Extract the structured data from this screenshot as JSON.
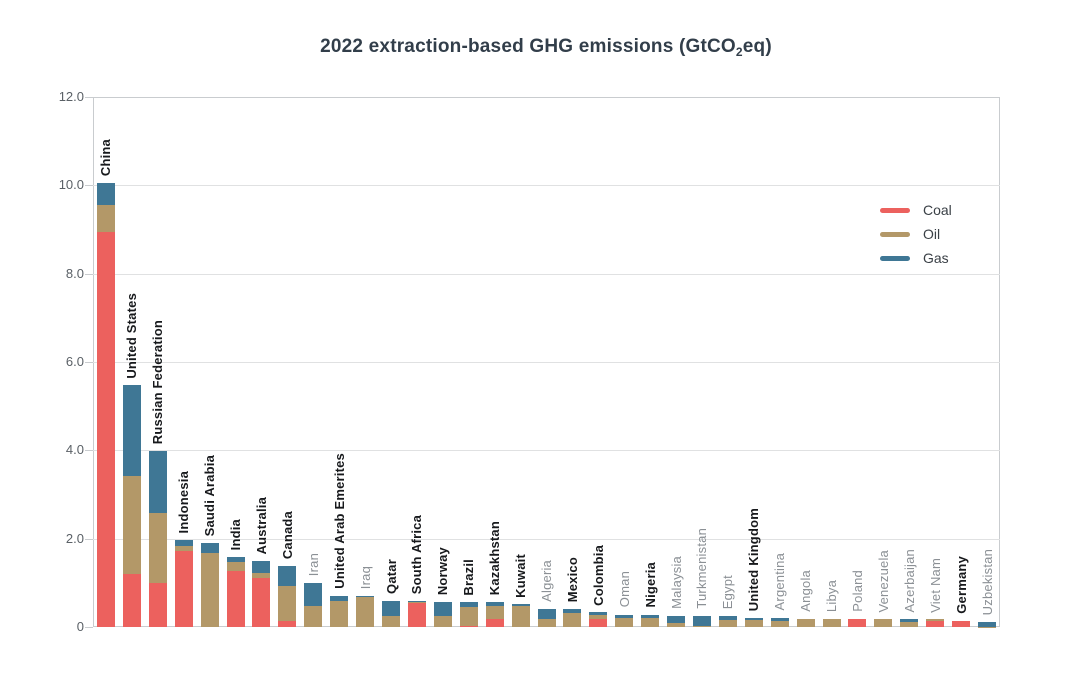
{
  "title": {
    "pre": "2022 extraction-based GHG emissions (GtCO",
    "sub": "2",
    "post": "eq)"
  },
  "colors": {
    "coal": "#EC615E",
    "oil": "#B39868",
    "gas": "#3F7795",
    "title_text": "#323E4A",
    "grid": "#E0E1E2",
    "border": "#C9CCCF",
    "tick_label": "#5A6066",
    "label_bold": "#17191C",
    "label_gray": "#8B9095",
    "background": "#FFFFFF"
  },
  "legend": [
    {
      "label": "Coal",
      "series": "coal",
      "color": "#EC615E"
    },
    {
      "label": "Oil",
      "series": "oil",
      "color": "#B39868"
    },
    {
      "label": "Gas",
      "series": "gas",
      "color": "#3F7795"
    }
  ],
  "chart_data": {
    "type": "bar",
    "stacked": true,
    "title": "2022 extraction-based GHG emissions (GtCO₂eq)",
    "xlabel": "",
    "ylabel": "",
    "ylim": [
      0,
      12
    ],
    "grid": true,
    "legend_position": "upper right",
    "series_order": [
      "coal",
      "oil",
      "gas"
    ],
    "yticks": [
      {
        "v": 0,
        "label": "0"
      },
      {
        "v": 2,
        "label": "2.0"
      },
      {
        "v": 4,
        "label": "4.0"
      },
      {
        "v": 6,
        "label": "6.0"
      },
      {
        "v": 8,
        "label": "8.0"
      },
      {
        "v": 10,
        "label": "10.0"
      },
      {
        "v": 12,
        "label": "12.0"
      }
    ],
    "bars": [
      {
        "country": "China",
        "bold": true,
        "coal": 8.95,
        "oil": 0.6,
        "gas": 0.5
      },
      {
        "country": "United States",
        "bold": true,
        "coal": 1.2,
        "oil": 2.22,
        "gas": 2.05
      },
      {
        "country": "Russian Federation",
        "bold": true,
        "coal": 1.0,
        "oil": 1.58,
        "gas": 1.4
      },
      {
        "country": "Indonesia",
        "bold": true,
        "coal": 1.72,
        "oil": 0.12,
        "gas": 0.12
      },
      {
        "country": "Saudi Arabia",
        "bold": true,
        "coal": 0.0,
        "oil": 1.68,
        "gas": 0.22
      },
      {
        "country": "India",
        "bold": true,
        "coal": 1.26,
        "oil": 0.22,
        "gas": 0.1
      },
      {
        "country": "Australia",
        "bold": true,
        "coal": 1.12,
        "oil": 0.1,
        "gas": 0.27
      },
      {
        "country": "Canada",
        "bold": true,
        "coal": 0.13,
        "oil": 0.79,
        "gas": 0.45
      },
      {
        "country": "Iran",
        "bold": false,
        "coal": 0.0,
        "oil": 0.47,
        "gas": 0.53
      },
      {
        "country": "United Arab Emerites",
        "bold": true,
        "coal": 0.0,
        "oil": 0.58,
        "gas": 0.12
      },
      {
        "country": "Iraq",
        "bold": false,
        "coal": 0.0,
        "oil": 0.68,
        "gas": 0.02
      },
      {
        "country": "Qatar",
        "bold": true,
        "coal": 0.0,
        "oil": 0.24,
        "gas": 0.34
      },
      {
        "country": "South Africa",
        "bold": true,
        "coal": 0.54,
        "oil": 0.02,
        "gas": 0.02
      },
      {
        "country": "Norway",
        "bold": true,
        "coal": 0.0,
        "oil": 0.25,
        "gas": 0.31
      },
      {
        "country": "Brazil",
        "bold": true,
        "coal": 0.03,
        "oil": 0.43,
        "gas": 0.1
      },
      {
        "country": "Kazakhstan",
        "bold": true,
        "coal": 0.17,
        "oil": 0.3,
        "gas": 0.09
      },
      {
        "country": "Kuwait",
        "bold": true,
        "coal": 0.0,
        "oil": 0.48,
        "gas": 0.03
      },
      {
        "country": "Algeria",
        "bold": false,
        "coal": 0.0,
        "oil": 0.18,
        "gas": 0.22
      },
      {
        "country": "Mexico",
        "bold": true,
        "coal": 0.0,
        "oil": 0.31,
        "gas": 0.09
      },
      {
        "country": "Colombia",
        "bold": true,
        "coal": 0.19,
        "oil": 0.09,
        "gas": 0.05
      },
      {
        "country": "Oman",
        "bold": false,
        "coal": 0.0,
        "oil": 0.2,
        "gas": 0.08
      },
      {
        "country": "Nigeria",
        "bold": true,
        "coal": 0.0,
        "oil": 0.2,
        "gas": 0.08
      },
      {
        "country": "Malaysia",
        "bold": false,
        "coal": 0.0,
        "oil": 0.1,
        "gas": 0.15
      },
      {
        "country": "Turkmenistan",
        "bold": false,
        "coal": 0.0,
        "oil": 0.02,
        "gas": 0.23
      },
      {
        "country": "Egypt",
        "bold": false,
        "coal": 0.0,
        "oil": 0.16,
        "gas": 0.08
      },
      {
        "country": "United Kingdom",
        "bold": true,
        "coal": 0.0,
        "oil": 0.16,
        "gas": 0.05
      },
      {
        "country": "Argentina",
        "bold": false,
        "coal": 0.0,
        "oil": 0.13,
        "gas": 0.08
      },
      {
        "country": "Angola",
        "bold": false,
        "coal": 0.0,
        "oil": 0.19,
        "gas": 0.0
      },
      {
        "country": "Libya",
        "bold": false,
        "coal": 0.0,
        "oil": 0.17,
        "gas": 0.02
      },
      {
        "country": "Poland",
        "bold": false,
        "coal": 0.19,
        "oil": 0.0,
        "gas": 0.0
      },
      {
        "country": "Venezuela",
        "bold": false,
        "coal": 0.0,
        "oil": 0.17,
        "gas": 0.01
      },
      {
        "country": "Azerbaijan",
        "bold": false,
        "coal": 0.0,
        "oil": 0.12,
        "gas": 0.05
      },
      {
        "country": "Viet Nam",
        "bold": false,
        "coal": 0.14,
        "oil": 0.03,
        "gas": 0.0
      },
      {
        "country": "Germany",
        "bold": true,
        "coal": 0.13,
        "oil": 0.01,
        "gas": 0.0
      },
      {
        "country": "Uzbekistan",
        "bold": false,
        "coal": 0.0,
        "oil": 0.01,
        "gas": 0.1
      }
    ]
  }
}
